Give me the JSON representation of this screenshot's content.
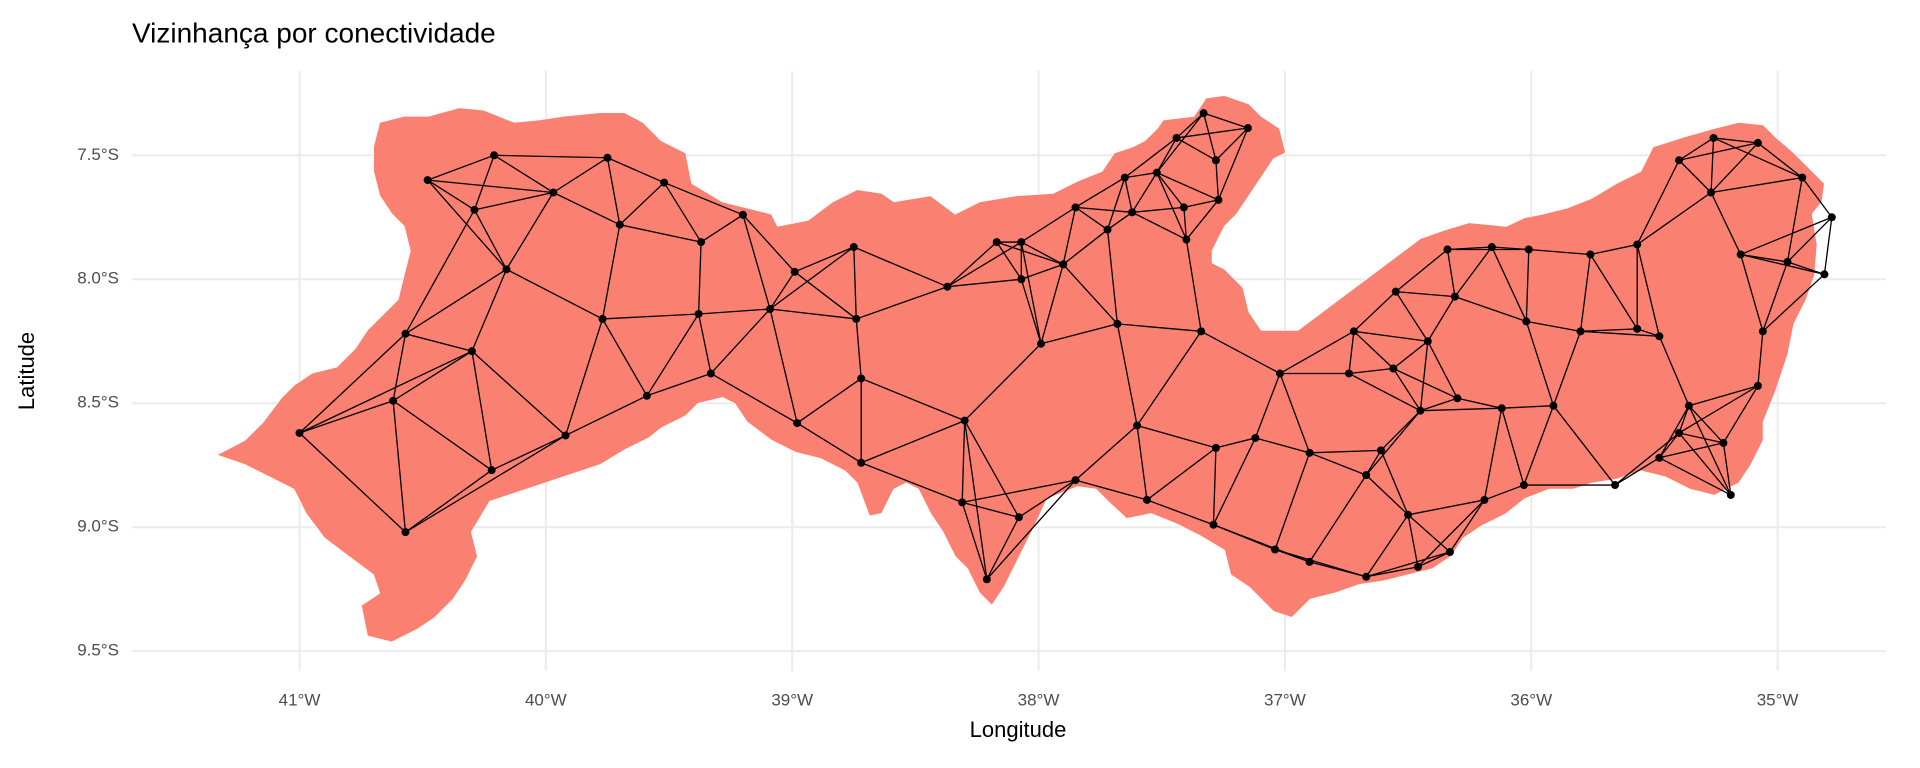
{
  "chart_data": {
    "type": "map",
    "title": "Vizinhança por conectividade",
    "x_label": "Longitude",
    "y_label": "Latitude",
    "xlim": [
      -41.68,
      -34.56
    ],
    "ylim": [
      -9.58,
      -7.16
    ],
    "xticks": [
      {
        "value": -41,
        "label": "41°W"
      },
      {
        "value": -40,
        "label": "40°W"
      },
      {
        "value": -39,
        "label": "39°W"
      },
      {
        "value": -38,
        "label": "38°W"
      },
      {
        "value": -37,
        "label": "37°W"
      },
      {
        "value": -36,
        "label": "36°W"
      },
      {
        "value": -35,
        "label": "35°W"
      }
    ],
    "yticks": [
      {
        "value": -7.5,
        "label": "7.5°S"
      },
      {
        "value": -8.0,
        "label": "8.0°S"
      },
      {
        "value": -8.5,
        "label": "8.5°S"
      },
      {
        "value": -9.0,
        "label": "9.0°S"
      },
      {
        "value": -9.5,
        "label": "9.5°S"
      }
    ],
    "grid": true,
    "color": "#fa8072",
    "point_color": "#000000",
    "x": [
      -41.0,
      -40.62,
      -40.57,
      -40.22,
      -40.3,
      -40.57,
      -40.16,
      -40.29,
      -40.21,
      -40.48,
      -39.97,
      -39.75,
      -39.7,
      -39.52,
      -39.77,
      -39.92,
      -39.59,
      -39.37,
      -39.38,
      -39.33,
      -39.2,
      -39.09,
      -38.99,
      -38.98,
      -38.75,
      -38.74,
      -38.72,
      -38.72,
      -38.37,
      -38.3,
      -38.31,
      -38.21,
      -38.08,
      -38.17,
      -38.07,
      -38.07,
      -37.99,
      -37.9,
      -37.85,
      -37.85,
      -37.72,
      -37.68,
      -37.65,
      -37.62,
      -37.6,
      -37.56,
      -37.52,
      -37.44,
      -37.33,
      -37.15,
      -37.28,
      -37.41,
      -37.4,
      -37.27,
      -37.34,
      -37.28,
      -37.29,
      -37.12,
      -37.02,
      -37.04,
      -36.9,
      -36.9,
      -36.74,
      -36.72,
      -36.56,
      -36.55,
      -36.42,
      -36.34,
      -36.31,
      -36.16,
      -36.02,
      -36.01,
      -36.45,
      -36.3,
      -36.61,
      -36.67,
      -36.67,
      -36.5,
      -36.46,
      -36.33,
      -36.19,
      -36.03,
      -36.12,
      -35.91,
      -35.8,
      -35.76,
      -35.57,
      -35.48,
      -35.66,
      -35.48,
      -35.36,
      -35.4,
      -35.22,
      -35.19,
      -35.08,
      -35.06,
      -35.15,
      -34.96,
      -34.81,
      -34.9,
      -35.08,
      -35.26,
      -35.4,
      -34.78,
      -35.27,
      -35.57
    ],
    "values": [
      -8.62,
      -8.49,
      -9.02,
      -8.77,
      -8.29,
      -8.22,
      -7.96,
      -7.72,
      -7.5,
      -7.6,
      -7.65,
      -7.51,
      -7.78,
      -7.61,
      -8.16,
      -8.63,
      -8.47,
      -7.85,
      -8.14,
      -8.38,
      -7.74,
      -8.12,
      -7.97,
      -8.58,
      -7.87,
      -8.16,
      -8.4,
      -8.74,
      -8.03,
      -8.57,
      -8.9,
      -9.21,
      -8.96,
      -7.85,
      -7.85,
      -8.0,
      -8.26,
      -7.94,
      -8.81,
      -7.71,
      -7.8,
      -8.18,
      -7.59,
      -7.73,
      -8.59,
      -8.89,
      -7.57,
      -7.43,
      -7.33,
      -7.39,
      -7.52,
      -7.71,
      -7.84,
      -7.68,
      -8.21,
      -8.68,
      -8.99,
      -8.64,
      -8.38,
      -9.09,
      -8.7,
      -9.14,
      -8.38,
      -8.21,
      -8.36,
      -8.05,
      -8.25,
      -7.88,
      -8.07,
      -7.87,
      -8.17,
      -7.88,
      -8.53,
      -8.48,
      -8.69,
      -8.79,
      -9.2,
      -8.95,
      -9.16,
      -9.1,
      -8.89,
      -8.83,
      -8.52,
      -8.51,
      -8.21,
      -7.9,
      -8.2,
      -8.23,
      -8.83,
      -8.72,
      -8.51,
      -8.62,
      -8.66,
      -8.87,
      -8.43,
      -8.21,
      -7.9,
      -7.93,
      -7.98,
      -7.59,
      -7.45,
      -7.43,
      -7.52,
      -7.75,
      -7.65,
      -7.86
    ]
  }
}
